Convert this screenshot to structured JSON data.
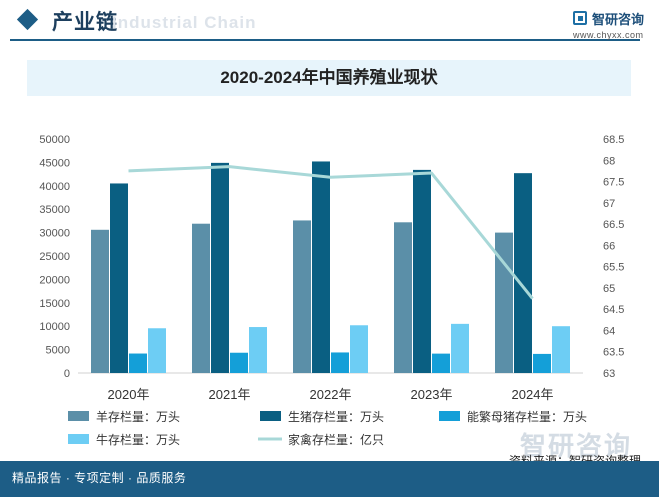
{
  "header": {
    "title": "产业链",
    "watermark_en": "Industrial Chain",
    "logo_name": "智研咨询",
    "logo_url": "www.chyxx.com"
  },
  "chart_title": "2020-2024年中国养殖业现状",
  "footer": {
    "left_text": "精品报告 · 专项定制 · 品质服务",
    "source": "资料来源：智研咨询整理",
    "watermark": "智研咨询"
  },
  "colors": {
    "brand": "#1d5d86",
    "sheep": "#5b8fa8",
    "pig": "#0a5f82",
    "sow": "#149fd8",
    "cattle": "#6dcdf4",
    "poultry": "#a8d8d8",
    "title_band": "#e7f4fb"
  },
  "chart_data": {
    "type": "bar",
    "title": "2020-2024年中国养殖业现状",
    "categories": [
      "2020年",
      "2021年",
      "2022年",
      "2023年",
      "2024年"
    ],
    "y_left": {
      "lim": [
        0,
        50000
      ],
      "ticks": [
        "0",
        "5000",
        "10000",
        "15000",
        "20000",
        "25000",
        "30000",
        "35000",
        "40000",
        "45000",
        "50000"
      ]
    },
    "y_right": {
      "lim": [
        63,
        68.5
      ],
      "ticks": [
        "63",
        "63.5",
        "64",
        "64.5",
        "65",
        "65.5",
        "66",
        "66.5",
        "67",
        "67.5",
        "68",
        "68.5"
      ]
    },
    "series": [
      {
        "name": "羊存栏量：万头",
        "type": "bar",
        "axis": "left",
        "values": [
          30600,
          31900,
          32600,
          32200,
          30000
        ]
      },
      {
        "name": "生猪存栏量：万头",
        "type": "bar",
        "axis": "left",
        "values": [
          40500,
          44900,
          45200,
          43400,
          42700
        ]
      },
      {
        "name": "能繁母猪存栏量：万头",
        "type": "bar",
        "axis": "left",
        "values": [
          4160,
          4330,
          4390,
          4140,
          4080
        ]
      },
      {
        "name": "牛存栏量：万头",
        "type": "bar",
        "axis": "left",
        "values": [
          9560,
          9820,
          10200,
          10500,
          10000
        ]
      },
      {
        "name": "家禽存栏量：亿只",
        "type": "line",
        "axis": "right",
        "values": [
          67.75,
          67.85,
          67.6,
          67.7,
          64.75
        ]
      }
    ],
    "legend_position": "bottom",
    "grid": false
  }
}
